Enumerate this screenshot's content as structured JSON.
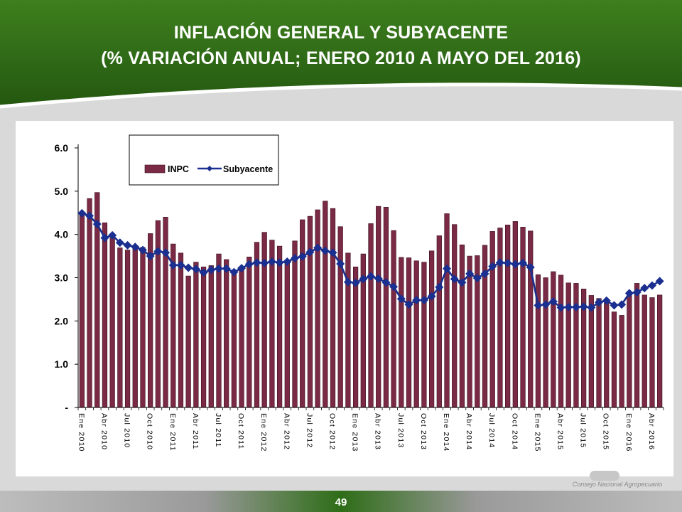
{
  "title": {
    "line1": "INFLACIÓN GENERAL Y SUBYACENTE",
    "line2": "(% VARIACIÓN ANUAL; ENERO 2010  A MAYO DEL 2016)"
  },
  "page_number": "49",
  "organization": "Consejo Nacional Agropecuario",
  "colors": {
    "bar": "#7b2a45",
    "bar_edge": "#3a0f1f",
    "line": "#1a2f8f",
    "header": "#2f6a17"
  },
  "chart_data": {
    "type": "bar",
    "title": "",
    "xlabel": "",
    "ylabel": "",
    "ylim": [
      0,
      6
    ],
    "yticks": [
      {
        "value": 0,
        "label": "-"
      },
      {
        "value": 1,
        "label": "1.0"
      },
      {
        "value": 2,
        "label": "2.0"
      },
      {
        "value": 3,
        "label": "3.0"
      },
      {
        "value": 4,
        "label": "4.0"
      },
      {
        "value": 5,
        "label": "5.0"
      },
      {
        "value": 6,
        "label": "6.0"
      }
    ],
    "legend_position": "top-left",
    "grid": false,
    "x_tick_labels": [
      {
        "index": 0,
        "label": "Ene 2010"
      },
      {
        "index": 3,
        "label": "Abr 2010"
      },
      {
        "index": 6,
        "label": "Jul 2010"
      },
      {
        "index": 9,
        "label": "Oct 2010"
      },
      {
        "index": 12,
        "label": "Ene 2011"
      },
      {
        "index": 15,
        "label": "Abr 2011"
      },
      {
        "index": 18,
        "label": "Jul 2011"
      },
      {
        "index": 21,
        "label": "Oct 2011"
      },
      {
        "index": 24,
        "label": "Ene 2012"
      },
      {
        "index": 27,
        "label": "Abr 2012"
      },
      {
        "index": 30,
        "label": "Jul 2012"
      },
      {
        "index": 33,
        "label": "Oct 2012"
      },
      {
        "index": 36,
        "label": "Ene 2013"
      },
      {
        "index": 39,
        "label": "Abr 2013"
      },
      {
        "index": 42,
        "label": "Jul 2013"
      },
      {
        "index": 45,
        "label": "Oct 2013"
      },
      {
        "index": 48,
        "label": "Ene 2014"
      },
      {
        "index": 51,
        "label": "Abr 2014"
      },
      {
        "index": 54,
        "label": "Jul 2014"
      },
      {
        "index": 57,
        "label": "Oct 2014"
      },
      {
        "index": 60,
        "label": "Ene 2015"
      },
      {
        "index": 63,
        "label": "Abr 2015"
      },
      {
        "index": 66,
        "label": "Jul 2015"
      },
      {
        "index": 69,
        "label": "Oct 2015"
      },
      {
        "index": 72,
        "label": "Ene 2016"
      },
      {
        "index": 75,
        "label": "Abr 2016"
      }
    ],
    "series": [
      {
        "name": "INPC",
        "type": "bar",
        "values": [
          4.46,
          4.83,
          4.97,
          4.27,
          3.92,
          3.69,
          3.64,
          3.68,
          3.7,
          4.02,
          4.32,
          4.4,
          3.78,
          3.57,
          3.04,
          3.36,
          3.25,
          3.28,
          3.55,
          3.42,
          3.14,
          3.2,
          3.48,
          3.82,
          4.05,
          3.87,
          3.73,
          3.41,
          3.85,
          4.34,
          4.42,
          4.57,
          4.77,
          4.6,
          4.18,
          3.57,
          3.25,
          3.55,
          4.25,
          4.65,
          4.63,
          4.09,
          3.47,
          3.46,
          3.39,
          3.36,
          3.62,
          3.97,
          4.48,
          4.23,
          3.76,
          3.5,
          3.51,
          3.75,
          4.07,
          4.15,
          4.22,
          4.3,
          4.17,
          4.08,
          3.07,
          3.0,
          3.14,
          3.06,
          2.88,
          2.87,
          2.74,
          2.59,
          2.52,
          2.48,
          2.21,
          2.13,
          2.61,
          2.87,
          2.6,
          2.54,
          2.6
        ]
      },
      {
        "name": "Subyacente",
        "type": "line",
        "values": [
          4.49,
          4.43,
          4.24,
          3.92,
          3.98,
          3.81,
          3.75,
          3.71,
          3.64,
          3.5,
          3.61,
          3.58,
          3.29,
          3.29,
          3.23,
          3.2,
          3.12,
          3.18,
          3.21,
          3.21,
          3.13,
          3.22,
          3.31,
          3.35,
          3.34,
          3.37,
          3.35,
          3.37,
          3.45,
          3.49,
          3.59,
          3.69,
          3.62,
          3.58,
          3.32,
          2.9,
          2.88,
          2.97,
          3.03,
          2.98,
          2.89,
          2.79,
          2.51,
          2.38,
          2.48,
          2.48,
          2.57,
          2.78,
          3.21,
          2.97,
          2.89,
          3.09,
          2.99,
          3.09,
          3.26,
          3.35,
          3.34,
          3.31,
          3.34,
          3.24,
          2.36,
          2.38,
          2.45,
          2.31,
          2.32,
          2.32,
          2.33,
          2.31,
          2.43,
          2.47,
          2.36,
          2.38,
          2.64,
          2.66,
          2.76,
          2.82,
          2.92
        ]
      }
    ]
  }
}
